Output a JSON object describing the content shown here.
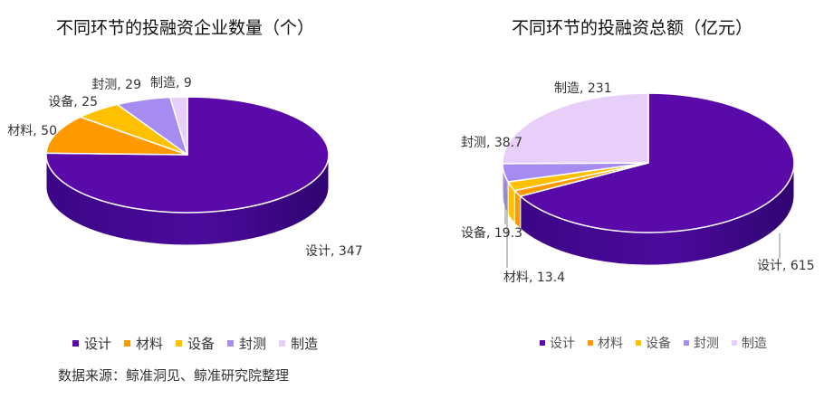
{
  "chart_data": [
    {
      "type": "pie",
      "title": "不同环节的投融资企业数量（个）",
      "categories": [
        "设计",
        "材料",
        "设备",
        "封测",
        "制造"
      ],
      "values": [
        347,
        50,
        25,
        29,
        9
      ],
      "labels": [
        "设计, 347",
        "材料, 50",
        "设备, 25",
        "封测, 29",
        "制造, 9"
      ],
      "colors": [
        "#5a0aa8",
        "#ff9900",
        "#ffc000",
        "#a68cf0",
        "#e8cffa"
      ],
      "legend": "bottom"
    },
    {
      "type": "pie",
      "title": "不同环节的投融资总额（亿元）",
      "categories": [
        "设计",
        "材料",
        "设备",
        "封测",
        "制造"
      ],
      "values": [
        615,
        13.4,
        19.3,
        38.7,
        231
      ],
      "labels": [
        "设计, 615",
        "材料, 13.4",
        "设备, 19.3",
        "封测, 38.7",
        "制造, 231"
      ],
      "colors": [
        "#5a0aa8",
        "#ff9900",
        "#ffc000",
        "#a68cf0",
        "#e8cffa"
      ],
      "legend": "bottom"
    }
  ],
  "source": "数据来源：鲸准洞见、鲸准研究院整理"
}
